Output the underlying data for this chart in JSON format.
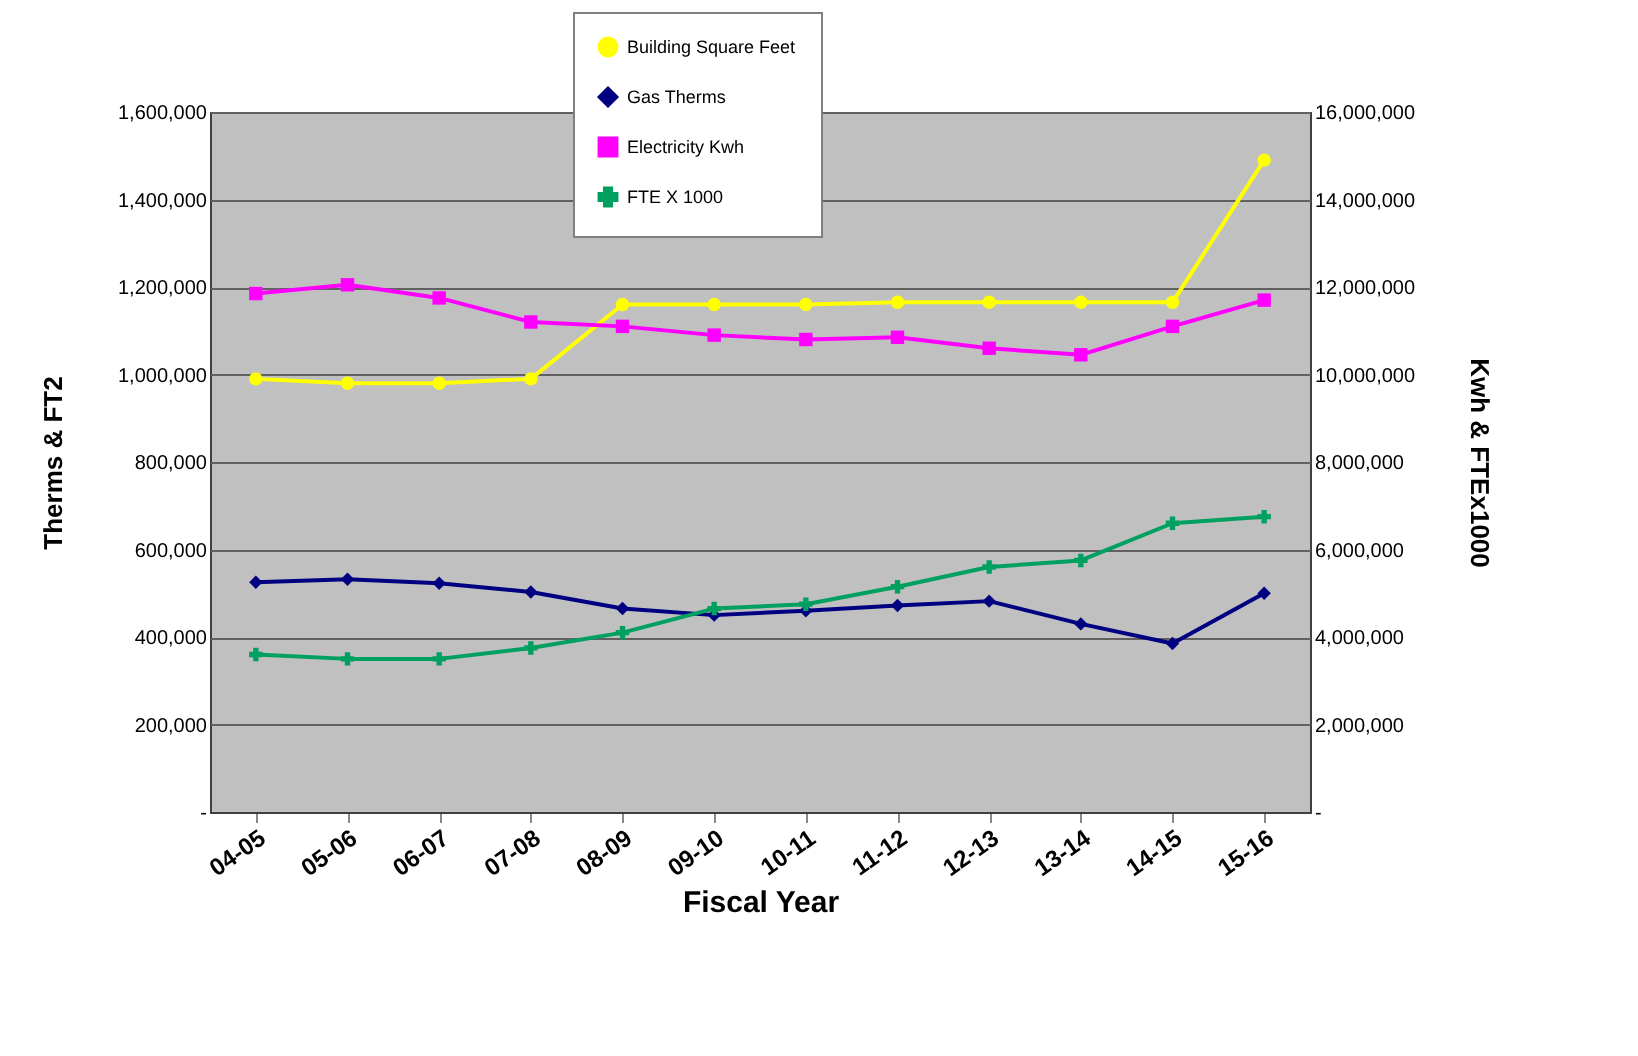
{
  "chart_data": {
    "type": "line",
    "xlabel": "Fiscal Year",
    "ylabel": "Therms & FT2",
    "y2label": "Kwh & FTEx1000",
    "categories": [
      "04-05",
      "05-06",
      "06-07",
      "07-08",
      "08-09",
      "09-10",
      "10-11",
      "11-12",
      "12-13",
      "13-14",
      "14-15",
      "15-16"
    ],
    "series": [
      {
        "name": "Building Square Feet",
        "color": "#ffff00",
        "marker": "circle",
        "values": [
          990000,
          980000,
          980000,
          990000,
          1160000,
          1160000,
          1160000,
          1165000,
          1165000,
          1165000,
          1165000,
          1490000
        ]
      },
      {
        "name": "Gas Therms",
        "color": "#000080",
        "marker": "diamond",
        "values": [
          525000,
          532000,
          523000,
          503000,
          465000,
          450000,
          460000,
          472000,
          482000,
          430000,
          385000,
          500000
        ]
      },
      {
        "name": "Electricity Kwh",
        "color": "#ff00ff",
        "marker": "square",
        "axis": "y2",
        "values": [
          11850000,
          12050000,
          11750000,
          11200000,
          11100000,
          10900000,
          10800000,
          10850000,
          10600000,
          10450000,
          11100000,
          11700000
        ]
      },
      {
        "name": "FTE X 1000",
        "color": "#00a060",
        "marker": "cross",
        "axis": "y2",
        "values": [
          3600000,
          3500000,
          3500000,
          3750000,
          4100000,
          4650000,
          4750000,
          5150000,
          5600000,
          5750000,
          6600000,
          6750000
        ]
      }
    ],
    "ylim": [
      0,
      1600000
    ],
    "yticks": [
      {
        "value": 0,
        "label": "-"
      },
      {
        "value": 200000,
        "label": "200,000"
      },
      {
        "value": 400000,
        "label": "400,000"
      },
      {
        "value": 600000,
        "label": "600,000"
      },
      {
        "value": 800000,
        "label": "800,000"
      },
      {
        "value": 1000000,
        "label": "1,000,000"
      },
      {
        "value": 1200000,
        "label": "1,200,000"
      },
      {
        "value": 1400000,
        "label": "1,400,000"
      },
      {
        "value": 1600000,
        "label": "1,600,000"
      }
    ],
    "y2lim": [
      0,
      16000000
    ],
    "y2ticks": [
      {
        "value": 0,
        "label": "-"
      },
      {
        "value": 2000000,
        "label": "2,000,000"
      },
      {
        "value": 4000000,
        "label": "4,000,000"
      },
      {
        "value": 6000000,
        "label": "6,000,000"
      },
      {
        "value": 8000000,
        "label": "8,000,000"
      },
      {
        "value": 10000000,
        "label": "10,000,000"
      },
      {
        "value": 12000000,
        "label": "12,000,000"
      },
      {
        "value": 14000000,
        "label": "14,000,000"
      },
      {
        "value": 16000000,
        "label": "16,000,000"
      }
    ],
    "grid": "y",
    "legend": "top"
  }
}
